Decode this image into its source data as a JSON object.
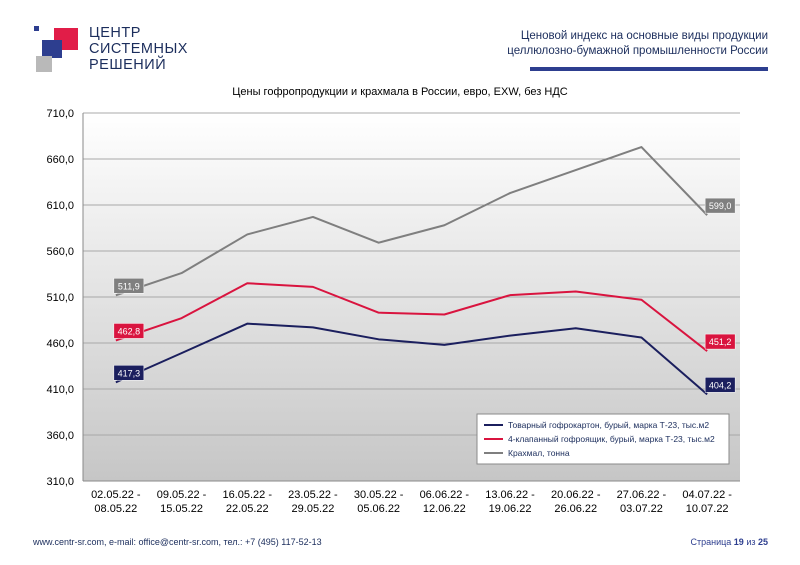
{
  "brand": {
    "line1": "ЦЕНТР",
    "line2": "СИСТЕМНЫХ",
    "line3": "РЕШЕНИЙ",
    "colors": {
      "red": "#e11d48",
      "blue": "#2d3e8f",
      "gray": "#b9b9b9",
      "dark": "#1b2d5c"
    }
  },
  "header": {
    "line1": "Ценовой  индекс  на  основные виды продукции",
    "line2": "целлюлозно-бумажной промышленности России"
  },
  "chart_data": {
    "type": "line",
    "title": "Цены гофропродукции и крахмала в России, евро, EXW, без НДС",
    "ylim": [
      310,
      710
    ],
    "yticks": [
      "710,0",
      "660,0",
      "610,0",
      "560,0",
      "510,0",
      "460,0",
      "410,0",
      "360,0",
      "310,0"
    ],
    "ytick_values": [
      710,
      660,
      610,
      560,
      510,
      460,
      410,
      360,
      310
    ],
    "categories": [
      [
        "02.05.22 -",
        "08.05.22"
      ],
      [
        "09.05.22 -",
        "15.05.22"
      ],
      [
        "16.05.22 -",
        "22.05.22"
      ],
      [
        "23.05.22 -",
        "29.05.22"
      ],
      [
        "30.05.22 -",
        "05.06.22"
      ],
      [
        "06.06.22 -",
        "12.06.22"
      ],
      [
        "13.06.22 -",
        "19.06.22"
      ],
      [
        "20.06.22 -",
        "26.06.22"
      ],
      [
        "27.06.22 -",
        "03.07.22"
      ],
      [
        "04.07.22 -",
        "10.07.22"
      ]
    ],
    "grid": true,
    "legend_position": "bottom-right",
    "series": [
      {
        "name": "Товарный гофрокартон, бурый, марка Т-23, тыс.м2",
        "color": "#1b1f5e",
        "values": [
          417.3,
          449,
          481,
          477,
          464,
          458,
          468,
          476,
          466,
          404.2
        ],
        "first_label": "417,3",
        "last_label": "404,2"
      },
      {
        "name": "4-клапанный гофроящик, бурый, марка Т-23, тыс.м2",
        "color": "#d9143f",
        "values": [
          462.8,
          487,
          525,
          521,
          493,
          491,
          512,
          516,
          507,
          451.2
        ],
        "first_label": "462,8",
        "last_label": "451,2"
      },
      {
        "name": "Крахмал, тонна",
        "color": "#7f7f7f",
        "values": [
          511.9,
          536,
          578,
          597,
          569,
          588,
          623,
          648,
          673,
          599.0
        ],
        "first_label": "511,9",
        "last_label": "599,0"
      }
    ]
  },
  "footer": {
    "contacts": "www.centr-sr.com, e-mail: office@centr-sr.com, тел.: +7 (495) 117-52-13",
    "page_word": "Страница",
    "page_num": "19",
    "of_word": "из",
    "page_total": "25"
  }
}
